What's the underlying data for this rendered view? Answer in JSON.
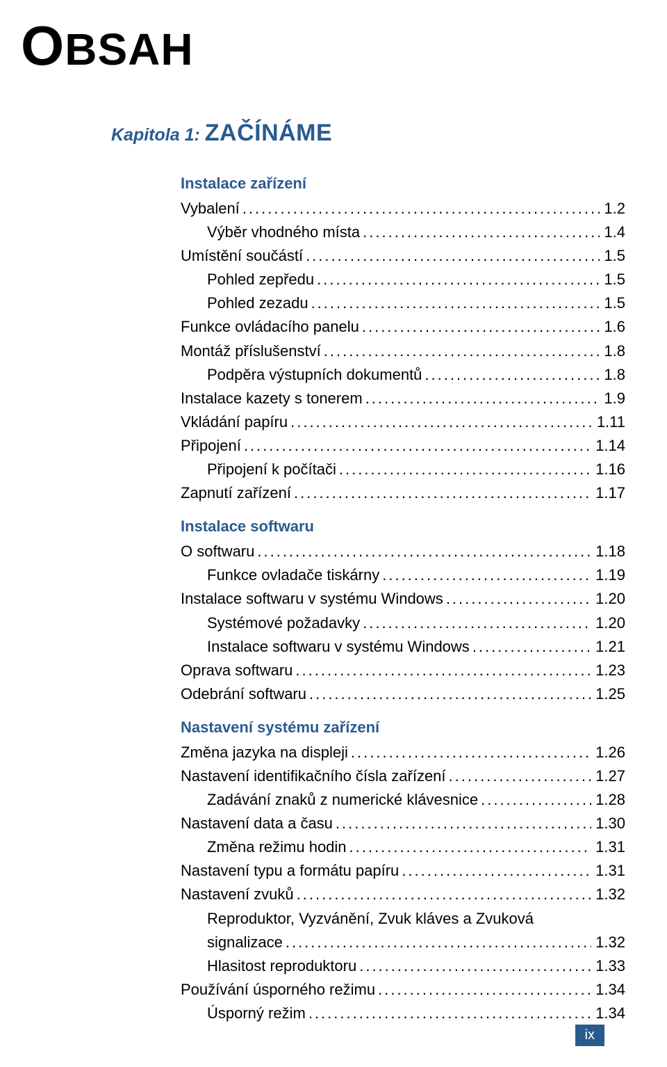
{
  "colors": {
    "accent": "#2a5b8f",
    "text": "#000000",
    "background": "#ffffff",
    "badge_bg": "#2a5b8f",
    "badge_text": "#ffffff"
  },
  "typography": {
    "body_font": "Verdana",
    "title_fontsize_pt": 56,
    "chapter_label_fontsize_pt": 18,
    "chapter_name_fontsize_pt": 25,
    "section_head_fontsize_pt": 16,
    "entry_fontsize_pt": 16
  },
  "title": "OBSAH",
  "chapter": {
    "label": "Kapitola 1:",
    "name": "ZAČÍNÁME"
  },
  "sections": [
    {
      "heading": "Instalace zařízení",
      "entries": [
        {
          "label": "Vybalení",
          "page": "1.2",
          "indent": 0
        },
        {
          "label": "Výběr vhodného místa",
          "page": "1.4",
          "indent": 1
        },
        {
          "label": "Umístění součástí",
          "page": "1.5",
          "indent": 0
        },
        {
          "label": "Pohled zepředu",
          "page": "1.5",
          "indent": 1
        },
        {
          "label": "Pohled zezadu",
          "page": "1.5",
          "indent": 1
        },
        {
          "label": "Funkce ovládacího panelu",
          "page": "1.6",
          "indent": 0
        },
        {
          "label": "Montáž příslušenství",
          "page": "1.8",
          "indent": 0
        },
        {
          "label": "Podpěra výstupních dokumentů",
          "page": "1.8",
          "indent": 1
        },
        {
          "label": "Instalace kazety s tonerem",
          "page": "1.9",
          "indent": 0
        },
        {
          "label": "Vkládání papíru",
          "page": "1.11",
          "indent": 0
        },
        {
          "label": "Připojení",
          "page": "1.14",
          "indent": 0
        },
        {
          "label": "Připojení k počítači",
          "page": "1.16",
          "indent": 1
        },
        {
          "label": "Zapnutí zařízení",
          "page": "1.17",
          "indent": 0
        }
      ]
    },
    {
      "heading": "Instalace softwaru",
      "entries": [
        {
          "label": "O softwaru",
          "page": "1.18",
          "indent": 0
        },
        {
          "label": "Funkce ovladače tiskárny",
          "page": "1.19",
          "indent": 1
        },
        {
          "label": "Instalace softwaru v systému Windows",
          "page": "1.20",
          "indent": 0
        },
        {
          "label": "Systémové požadavky",
          "page": "1.20",
          "indent": 1
        },
        {
          "label": "Instalace softwaru v systému Windows",
          "page": "1.21",
          "indent": 1
        },
        {
          "label": "Oprava softwaru",
          "page": "1.23",
          "indent": 0
        },
        {
          "label": "Odebrání softwaru",
          "page": "1.25",
          "indent": 0
        }
      ]
    },
    {
      "heading": "Nastavení systému zařízení",
      "entries": [
        {
          "label": "Změna jazyka na displeji",
          "page": "1.26",
          "indent": 0
        },
        {
          "label": "Nastavení identifikačního čísla zařízení",
          "page": "1.27",
          "indent": 0
        },
        {
          "label": "Zadávání znaků z numerické klávesnice",
          "page": "1.28",
          "indent": 1
        },
        {
          "label": "Nastavení data a času",
          "page": "1.30",
          "indent": 0
        },
        {
          "label": "Změna režimu hodin",
          "page": "1.31",
          "indent": 1
        },
        {
          "label": "Nastavení typu a formátu papíru",
          "page": "1.31",
          "indent": 0
        },
        {
          "label": "Nastavení zvuků",
          "page": "1.32",
          "indent": 0
        },
        {
          "label_line1": "Reproduktor, Vyzvánění, Zvuk kláves a Zvuková",
          "label_line2": "signalizace",
          "page": "1.32",
          "indent": 1,
          "wrap": true
        },
        {
          "label": "Hlasitost reproduktoru",
          "page": "1.33",
          "indent": 1
        },
        {
          "label": "Používání úsporného režimu",
          "page": "1.34",
          "indent": 0
        },
        {
          "label": "Úsporný režim",
          "page": "1.34",
          "indent": 1
        }
      ]
    }
  ],
  "footer_page": "ix",
  "dot_fill": "................................................................................................................"
}
